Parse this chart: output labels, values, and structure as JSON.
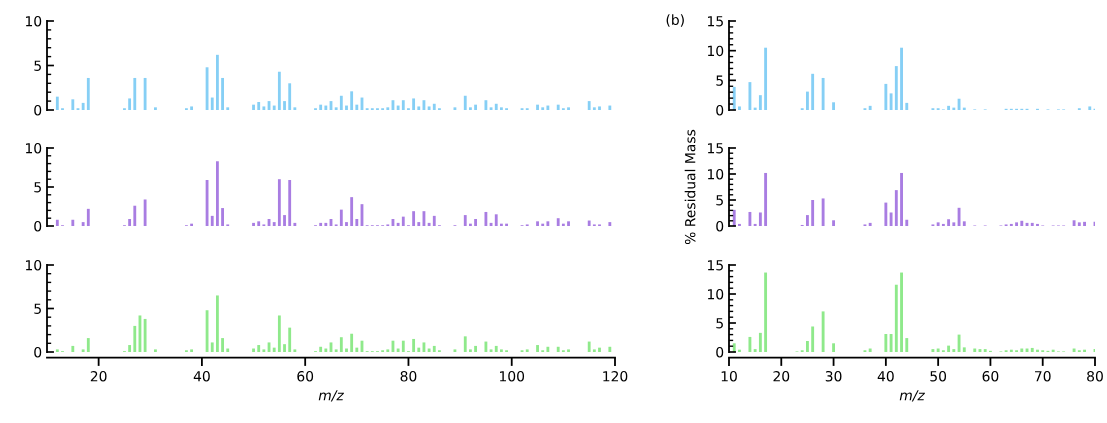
{
  "chart_data": [
    {
      "type": "bar",
      "x": [
        12,
        13,
        15,
        16,
        17,
        18,
        25,
        26,
        27,
        28,
        29,
        31,
        37,
        38,
        41,
        42,
        43,
        44,
        45,
        50,
        51,
        52,
        53,
        54,
        55,
        56,
        57,
        58,
        62,
        63,
        64,
        65,
        66,
        67,
        68,
        69,
        70,
        71,
        72,
        73,
        74,
        75,
        76,
        77,
        78,
        79,
        80,
        81,
        82,
        83,
        84,
        85,
        86,
        89,
        91,
        92,
        93,
        95,
        96,
        97,
        98,
        99,
        102,
        103,
        105,
        106,
        107,
        109,
        110,
        111,
        115,
        116,
        117,
        119
      ],
      "series": [
        {
          "color": "#86cff5",
          "values": [
            1.5,
            0.2,
            1.2,
            0.2,
            0.8,
            3.6,
            0.2,
            1.3,
            3.6,
            0,
            3.6,
            0.3,
            0.2,
            0.4,
            4.8,
            1.4,
            6.2,
            3.6,
            0.3,
            0.6,
            0.9,
            0.4,
            1.0,
            0.5,
            4.3,
            1.0,
            3.0,
            0.3,
            0.2,
            0.6,
            0.5,
            1.0,
            0.3,
            1.6,
            0.5,
            2.1,
            0.6,
            1.4,
            0.2,
            0.2,
            0.2,
            0.2,
            0.3,
            1.1,
            0.5,
            1.1,
            0.2,
            1.3,
            0.4,
            1.1,
            0.4,
            0.7,
            0.2,
            0.3,
            1.6,
            0.3,
            0.6,
            1.1,
            0.3,
            0.7,
            0.3,
            0.2,
            0.2,
            0.2,
            0.6,
            0.3,
            0.5,
            0.6,
            0.2,
            0.3,
            1.0,
            0.3,
            0.4,
            0.5
          ]
        }
      ],
      "xlim": [
        10,
        120
      ],
      "ylim": [
        0,
        10
      ],
      "yticks": [
        0,
        5,
        10
      ],
      "tick_labels": "y"
    },
    {
      "type": "bar",
      "x": [
        11,
        12,
        14,
        15,
        16,
        17,
        24,
        25,
        26,
        28,
        30,
        36,
        37,
        40,
        41,
        42,
        43,
        44,
        49,
        50,
        51,
        52,
        53,
        54,
        55,
        57,
        59,
        63,
        64,
        65,
        66,
        67,
        69,
        71,
        73,
        74,
        77,
        79,
        80
      ],
      "series": [
        {
          "color": "#86cff5",
          "values": [
            3.9,
            0.6,
            4.7,
            0.4,
            2.5,
            10.5,
            0.3,
            3.1,
            6.1,
            5.4,
            1.3,
            0.3,
            0.7,
            4.4,
            2.8,
            7.4,
            10.5,
            1.2,
            0.3,
            0.3,
            0.1,
            0.7,
            0.4,
            1.9,
            0.4,
            0.1,
            0.1,
            0.2,
            0.2,
            0.2,
            0.2,
            0.2,
            0.2,
            0.1,
            0.1,
            0.1,
            0.3,
            0.6,
            0.2
          ]
        }
      ],
      "xlim": [
        10,
        80
      ],
      "ylim": [
        0,
        15
      ],
      "yticks": [
        0,
        5,
        10,
        15
      ],
      "tick_labels": "y",
      "annotations": [
        "(b)"
      ]
    },
    {
      "type": "bar",
      "x": [
        12,
        13,
        15,
        16,
        17,
        18,
        25,
        26,
        27,
        28,
        29,
        31,
        37,
        38,
        41,
        42,
        43,
        44,
        45,
        50,
        51,
        52,
        53,
        54,
        55,
        56,
        57,
        58,
        62,
        63,
        64,
        65,
        66,
        67,
        68,
        69,
        70,
        71,
        72,
        73,
        74,
        75,
        76,
        77,
        78,
        79,
        80,
        81,
        82,
        83,
        84,
        85,
        86,
        89,
        91,
        92,
        93,
        95,
        96,
        97,
        98,
        99,
        102,
        103,
        105,
        106,
        107,
        109,
        110,
        111,
        115,
        116,
        117,
        119
      ],
      "series": [
        {
          "color": "#a97de2",
          "values": [
            0.8,
            0.1,
            0.8,
            0,
            0.5,
            2.2,
            0.1,
            0.9,
            2.6,
            0,
            3.4,
            0,
            0.1,
            0.3,
            5.9,
            1.3,
            8.3,
            2.3,
            0.2,
            0.4,
            0.6,
            0.2,
            0.9,
            0.5,
            6.0,
            1.4,
            5.9,
            0.4,
            0.1,
            0.4,
            0.4,
            0.9,
            0.2,
            2.1,
            0.5,
            3.7,
            0.9,
            2.8,
            0.1,
            0.1,
            0.1,
            0.1,
            0.2,
            0.9,
            0.4,
            1.2,
            0.1,
            1.9,
            0.5,
            1.9,
            0.4,
            1.3,
            0.1,
            0.1,
            1.4,
            0.3,
            0.9,
            1.8,
            0.4,
            1.5,
            0.3,
            0.3,
            0.1,
            0.2,
            0.6,
            0.3,
            0.6,
            1.0,
            0.3,
            0.6,
            0.7,
            0.2,
            0.2,
            0.5
          ]
        }
      ],
      "xlim": [
        10,
        120
      ],
      "ylim": [
        0,
        10
      ],
      "yticks": [
        0,
        5,
        10
      ],
      "tick_labels": "y"
    },
    {
      "type": "bar",
      "x": [
        11,
        12,
        14,
        15,
        16,
        17,
        24,
        25,
        26,
        28,
        30,
        36,
        37,
        40,
        41,
        42,
        43,
        44,
        49,
        50,
        51,
        52,
        53,
        54,
        55,
        57,
        59,
        62,
        63,
        64,
        65,
        66,
        67,
        68,
        69,
        70,
        72,
        73,
        74,
        76,
        77,
        78,
        80
      ],
      "series": [
        {
          "color": "#a97de2",
          "values": [
            3.1,
            0.4,
            2.7,
            0.4,
            2.6,
            10.2,
            0.2,
            2.1,
            5.0,
            5.3,
            1.1,
            0.3,
            0.6,
            4.5,
            2.6,
            6.9,
            10.2,
            1.2,
            0.3,
            0.7,
            0.4,
            1.3,
            0.7,
            3.5,
            0.9,
            0.1,
            0.1,
            0.1,
            0.3,
            0.4,
            0.7,
            1.0,
            0.6,
            0.6,
            0.4,
            0.1,
            0.1,
            0.1,
            0.1,
            1.1,
            0.7,
            0.8,
            0.8
          ]
        }
      ],
      "xlim": [
        10,
        80
      ],
      "ylim": [
        0,
        15
      ],
      "yticks": [
        0,
        5,
        10,
        15
      ],
      "tick_labels": "y",
      "ylabel": "% Residual Mass"
    },
    {
      "type": "bar",
      "x": [
        12,
        13,
        15,
        16,
        17,
        18,
        25,
        26,
        27,
        28,
        29,
        31,
        37,
        38,
        41,
        42,
        43,
        44,
        45,
        50,
        51,
        52,
        53,
        54,
        55,
        56,
        57,
        58,
        62,
        63,
        64,
        65,
        66,
        67,
        68,
        69,
        70,
        71,
        72,
        73,
        74,
        75,
        76,
        77,
        78,
        79,
        80,
        81,
        82,
        83,
        84,
        85,
        86,
        89,
        91,
        92,
        93,
        95,
        96,
        97,
        98,
        99,
        102,
        103,
        105,
        106,
        107,
        109,
        110,
        111,
        115,
        116,
        117,
        119
      ],
      "series": [
        {
          "color": "#8fe98b",
          "values": [
            0.3,
            0.1,
            0.7,
            0,
            0.3,
            1.6,
            0.1,
            0.8,
            3.0,
            4.2,
            3.8,
            0.3,
            0.2,
            0.3,
            4.8,
            1.1,
            6.5,
            1.6,
            0.4,
            0.4,
            0.8,
            0.3,
            1.1,
            0.5,
            4.2,
            0.9,
            2.8,
            0.3,
            0.1,
            0.6,
            0.4,
            1.1,
            0.3,
            1.7,
            0.4,
            2.1,
            0.5,
            1.3,
            0.1,
            0.1,
            0.1,
            0.2,
            0.3,
            1.3,
            0.4,
            1.3,
            0.1,
            1.5,
            0.5,
            1.1,
            0.4,
            0.7,
            0.2,
            0.3,
            1.8,
            0.3,
            0.7,
            1.2,
            0.3,
            0.7,
            0.3,
            0.2,
            0.2,
            0.3,
            0.8,
            0.2,
            0.6,
            0.6,
            0.2,
            0.3,
            1.2,
            0.3,
            0.5,
            0.6
          ]
        }
      ],
      "xlim": [
        10,
        120
      ],
      "ylim": [
        0,
        10
      ],
      "yticks": [
        0,
        5,
        10
      ],
      "xticks": [
        20,
        40,
        60,
        80,
        100,
        120
      ],
      "xlabel": "m/z"
    },
    {
      "type": "bar",
      "x": [
        11,
        12,
        14,
        15,
        16,
        17,
        23,
        24,
        25,
        26,
        28,
        30,
        36,
        37,
        40,
        41,
        42,
        43,
        44,
        49,
        50,
        51,
        52,
        53,
        54,
        55,
        57,
        58,
        59,
        60,
        62,
        63,
        64,
        65,
        66,
        67,
        68,
        69,
        70,
        71,
        72,
        73,
        74,
        76,
        77,
        78,
        80
      ],
      "series": [
        {
          "color": "#8fe98b",
          "values": [
            1.5,
            0.4,
            2.6,
            0.5,
            3.3,
            13.7,
            0.1,
            0.3,
            1.9,
            4.4,
            7.0,
            1.5,
            0.3,
            0.6,
            3.1,
            3.1,
            11.6,
            13.7,
            2.4,
            0.5,
            0.6,
            0.3,
            1.1,
            0.5,
            3.0,
            0.8,
            0.6,
            0.5,
            0.5,
            0.2,
            0.1,
            0.3,
            0.4,
            0.3,
            0.6,
            0.6,
            0.7,
            0.4,
            0.3,
            0.2,
            0.4,
            0.1,
            0.1,
            0.6,
            0.3,
            0.4,
            0.5
          ]
        }
      ],
      "xlim": [
        10,
        80
      ],
      "ylim": [
        0,
        15
      ],
      "yticks": [
        0,
        5,
        10,
        15
      ],
      "xticks": [
        10,
        20,
        30,
        40,
        50,
        60,
        70,
        80
      ],
      "xlabel": "m/z"
    }
  ]
}
